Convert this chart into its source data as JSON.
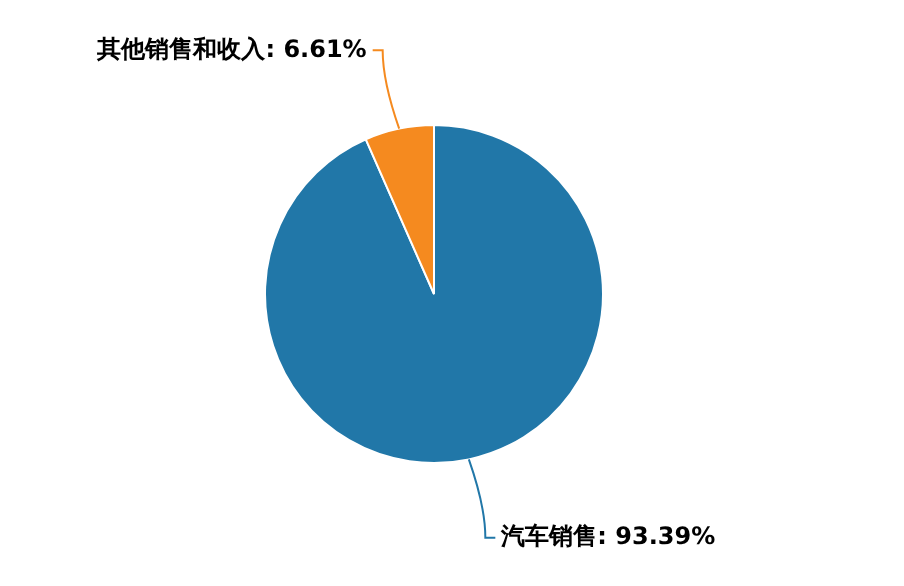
{
  "chart_data": {
    "type": "pie",
    "categories": [
      "汽车销售",
      "其他销售和收入"
    ],
    "values": [
      93.39,
      6.61
    ],
    "value_labels": [
      "93.39%",
      "6.61%"
    ],
    "colors": [
      "#2177a8",
      "#f58a1f"
    ],
    "legend": false
  }
}
